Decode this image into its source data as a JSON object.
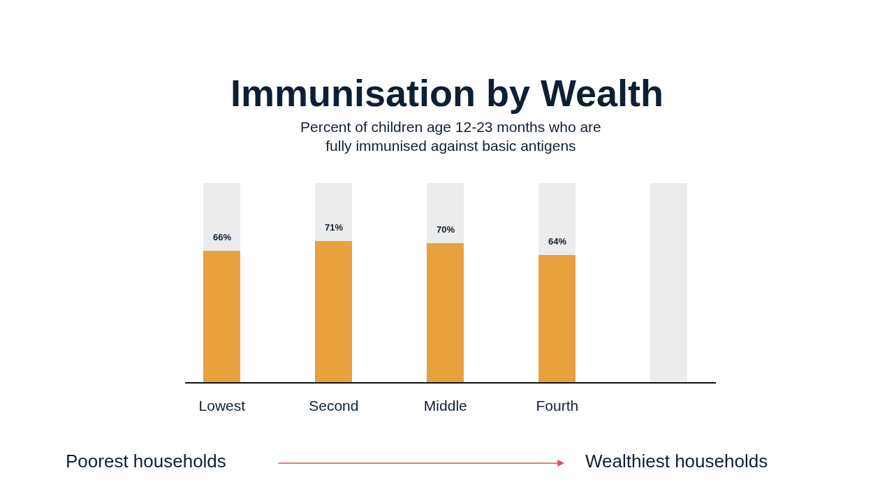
{
  "chart_data": {
    "type": "bar",
    "title": "Immunisation by Wealth",
    "subtitle": "Percent of children age 12-23 months who are fully immunised against basic antigens",
    "categories": [
      "Lowest",
      "Second",
      "Middle",
      "Fourth",
      null
    ],
    "series": [
      {
        "color": "#e8a23d",
        "values": [
          66,
          71,
          70,
          64,
          null
        ],
        "value_labels": [
          "66%",
          "71%",
          "70%",
          "64%",
          null
        ]
      },
      {
        "color": "#ececec",
        "values": [
          34,
          29,
          30,
          36,
          100
        ]
      }
    ],
    "stacked": true,
    "ylim": [
      0,
      100
    ],
    "tick_labels": "x",
    "annotations": [
      "Poorest households",
      "Wealthiest households"
    ]
  }
}
